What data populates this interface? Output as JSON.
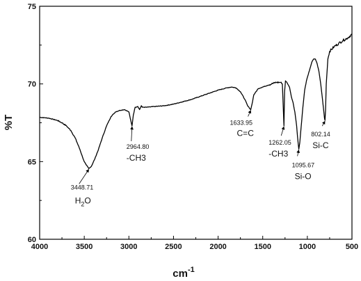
{
  "chart_data": {
    "type": "line",
    "xlabel": "cm",
    "xlabel_sup": "-1",
    "ylabel": "%T",
    "xlim": [
      4000,
      500
    ],
    "ylim": [
      60,
      75
    ],
    "x_ticks": [
      4000,
      3500,
      3000,
      2500,
      2000,
      1500,
      1000,
      500
    ],
    "y_ticks": [
      60,
      65,
      70,
      75
    ],
    "grid": false,
    "x_reversed": true,
    "line_color": "#000000",
    "series": [
      {
        "x": [
          4000,
          3900,
          3800,
          3750,
          3700,
          3650,
          3600,
          3550,
          3520,
          3500,
          3480,
          3448.71,
          3420,
          3380,
          3340,
          3300,
          3250,
          3200,
          3150,
          3100,
          3050,
          3000,
          2985,
          2964.8,
          2950,
          2930,
          2900,
          2880,
          2860,
          2850,
          2800,
          2700,
          2600,
          2500,
          2400,
          2300,
          2200,
          2100,
          2000,
          1900,
          1850,
          1800,
          1750,
          1700,
          1670,
          1650,
          1633.95,
          1620,
          1600,
          1550,
          1500,
          1450,
          1400,
          1350,
          1300,
          1280,
          1270,
          1262.05,
          1255,
          1245,
          1230,
          1200,
          1180,
          1160,
          1140,
          1120,
          1110,
          1095.67,
          1085,
          1070,
          1050,
          1030,
          1010,
          990,
          970,
          950,
          930,
          910,
          890,
          870,
          850,
          830,
          815,
          808,
          802.14,
          796,
          788,
          770,
          750,
          700,
          650,
          600,
          550,
          500
        ],
        "y": [
          67.85,
          67.8,
          67.65,
          67.5,
          67.3,
          67.0,
          66.5,
          65.8,
          65.3,
          65.0,
          64.8,
          64.55,
          64.7,
          65.2,
          65.8,
          66.5,
          67.3,
          67.9,
          68.2,
          68.3,
          68.35,
          68.2,
          67.8,
          67.3,
          68.0,
          68.5,
          68.55,
          68.35,
          68.6,
          68.5,
          68.5,
          68.55,
          68.6,
          68.7,
          68.85,
          69.0,
          69.2,
          69.4,
          69.6,
          69.75,
          69.8,
          69.75,
          69.5,
          69.0,
          68.6,
          68.45,
          68.35,
          68.7,
          69.3,
          69.7,
          69.8,
          69.9,
          70.0,
          70.1,
          70.1,
          70.0,
          68.5,
          67.3,
          69.5,
          70.2,
          70.1,
          69.8,
          69.2,
          68.8,
          68.2,
          67.3,
          66.6,
          65.8,
          66.2,
          67.2,
          68.5,
          69.6,
          70.2,
          70.6,
          71.0,
          71.4,
          71.6,
          71.6,
          71.3,
          70.8,
          70.0,
          69.0,
          68.2,
          67.8,
          67.65,
          68.3,
          70.0,
          71.6,
          72.1,
          72.4,
          72.6,
          72.8,
          72.95,
          73.2
        ]
      }
    ],
    "annotations": [
      {
        "wavenumber": "3448.71",
        "group": "H",
        "group_sub": "2",
        "group_tail": "O",
        "x": 3448.71,
        "y": 64.55
      },
      {
        "wavenumber": "2964.80",
        "group": "-CH3",
        "x": 2964.8,
        "y": 67.3
      },
      {
        "wavenumber": "1633.95",
        "group": "C=C",
        "x": 1633.95,
        "y": 68.35
      },
      {
        "wavenumber": "1262.05",
        "group": "-CH3",
        "x": 1262.05,
        "y": 67.3
      },
      {
        "wavenumber": "1095.67",
        "group": "Si-O",
        "x": 1095.67,
        "y": 65.8
      },
      {
        "wavenumber": "802.14",
        "group": "Si-C",
        "x": 802.14,
        "y": 67.65
      }
    ]
  }
}
